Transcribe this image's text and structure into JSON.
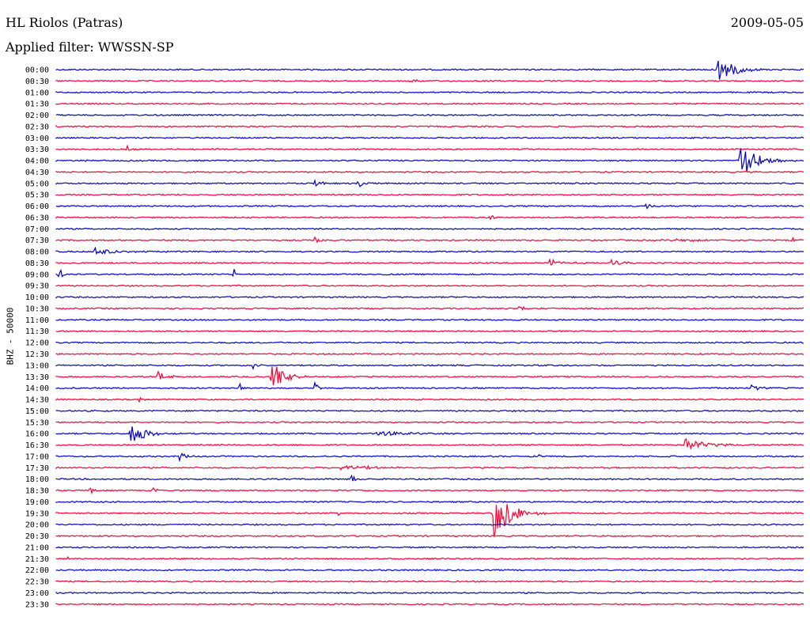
{
  "header": {
    "station": "HL Riolos (Patras)",
    "date": "2009-05-05",
    "filter": "Applied filter: WWSSN-SP"
  },
  "chart_data": {
    "type": "line",
    "title": "HL Riolos (Patras)",
    "ylabel": "BHZ - 50000",
    "colors": {
      "blue": "#0000cc",
      "red": "#ff0033"
    },
    "rows": [
      "00:00",
      "00:30",
      "01:00",
      "01:30",
      "02:00",
      "02:30",
      "03:00",
      "03:30",
      "04:00",
      "04:30",
      "05:00",
      "05:30",
      "06:00",
      "06:30",
      "07:00",
      "07:30",
      "08:00",
      "08:30",
      "09:00",
      "09:30",
      "10:00",
      "10:30",
      "11:00",
      "11:30",
      "12:00",
      "12:30",
      "13:00",
      "13:30",
      "14:00",
      "14:30",
      "15:00",
      "15:30",
      "16:00",
      "16:30",
      "17:00",
      "17:30",
      "18:00",
      "18:30",
      "19:00",
      "19:30",
      "20:00",
      "20:30",
      "21:00",
      "21:30",
      "22:00",
      "22:30",
      "23:00",
      "23:30"
    ],
    "events": [
      {
        "row": 0,
        "t": 0.885,
        "amp": 18,
        "dur": 0.02
      },
      {
        "row": 1,
        "t": 0.47,
        "amp": 4,
        "dur": 0.01
      },
      {
        "row": 7,
        "t": 0.095,
        "amp": 4,
        "dur": 0.005
      },
      {
        "row": 8,
        "t": 0.035,
        "amp": 3,
        "dur": 0.005
      },
      {
        "row": 8,
        "t": 0.913,
        "amp": 26,
        "dur": 0.02
      },
      {
        "row": 10,
        "t": 0.345,
        "amp": 5,
        "dur": 0.01
      },
      {
        "row": 10,
        "t": 0.405,
        "amp": 6,
        "dur": 0.005
      },
      {
        "row": 12,
        "t": 0.788,
        "amp": 7,
        "dur": 0.005
      },
      {
        "row": 13,
        "t": 0.58,
        "amp": 8,
        "dur": 0.005
      },
      {
        "row": 15,
        "t": 0.345,
        "amp": 8,
        "dur": 0.005
      },
      {
        "row": 15,
        "t": 0.83,
        "amp": 3,
        "dur": 0.02
      },
      {
        "row": 15,
        "t": 0.985,
        "amp": 3,
        "dur": 0.02
      },
      {
        "row": 16,
        "t": 0.05,
        "amp": 5,
        "dur": 0.03
      },
      {
        "row": 17,
        "t": 0.66,
        "amp": 4,
        "dur": 0.02
      },
      {
        "row": 17,
        "t": 0.74,
        "amp": 4,
        "dur": 0.02
      },
      {
        "row": 18,
        "t": 0.005,
        "amp": 9,
        "dur": 0.003
      },
      {
        "row": 18,
        "t": 0.238,
        "amp": 8,
        "dur": 0.003
      },
      {
        "row": 21,
        "t": 0.62,
        "amp": 10,
        "dur": 0.005
      },
      {
        "row": 27,
        "t": 0.135,
        "amp": 9,
        "dur": 0.01
      },
      {
        "row": 27,
        "t": 0.288,
        "amp": 20,
        "dur": 0.015
      },
      {
        "row": 26,
        "t": 0.263,
        "amp": 5,
        "dur": 0.005
      },
      {
        "row": 28,
        "t": 0.245,
        "amp": 8,
        "dur": 0.003
      },
      {
        "row": 28,
        "t": 0.345,
        "amp": 18,
        "dur": 0.003
      },
      {
        "row": 28,
        "t": 0.93,
        "amp": 4,
        "dur": 0.015
      },
      {
        "row": 29,
        "t": 0.11,
        "amp": 3,
        "dur": 0.005
      },
      {
        "row": 32,
        "t": 0.1,
        "amp": 18,
        "dur": 0.015
      },
      {
        "row": 32,
        "t": 0.43,
        "amp": 3,
        "dur": 0.04
      },
      {
        "row": 33,
        "t": 0.84,
        "amp": 8,
        "dur": 0.03
      },
      {
        "row": 34,
        "t": 0.165,
        "amp": 6,
        "dur": 0.01
      },
      {
        "row": 34,
        "t": 0.645,
        "amp": 6,
        "dur": 0.003
      },
      {
        "row": 35,
        "t": 0.38,
        "amp": 4,
        "dur": 0.04
      },
      {
        "row": 36,
        "t": 0.395,
        "amp": 12,
        "dur": 0.003
      },
      {
        "row": 37,
        "t": 0.045,
        "amp": 8,
        "dur": 0.003
      },
      {
        "row": 37,
        "t": 0.13,
        "amp": 3,
        "dur": 0.005
      },
      {
        "row": 39,
        "t": 0.375,
        "amp": 4,
        "dur": 0.005
      },
      {
        "row": 39,
        "t": 0.585,
        "amp": 35,
        "dur": 0.02
      },
      {
        "row": 43,
        "t": 0.015,
        "amp": 3,
        "dur": 0.003
      }
    ]
  }
}
